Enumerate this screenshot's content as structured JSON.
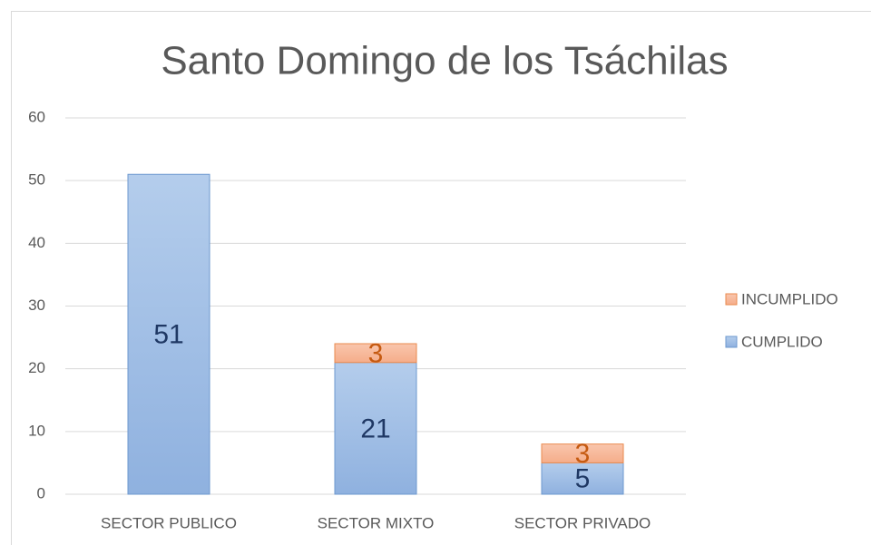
{
  "chart_data": {
    "type": "stacked_bar",
    "title": "Santo Domingo de los Tsáchilas",
    "categories": [
      "SECTOR PUBLICO",
      "SECTOR MIXTO",
      "SECTOR PRIVADO"
    ],
    "series": [
      {
        "name": "CUMPLIDO",
        "color": "#9dbce6",
        "values": [
          51,
          21,
          5
        ]
      },
      {
        "name": "INCUMPLIDO",
        "color": "#f7b99b",
        "values": [
          null,
          3,
          3
        ]
      }
    ],
    "ylim": [
      0,
      60
    ],
    "yticks": [
      0,
      10,
      20,
      30,
      40,
      50,
      60
    ],
    "grid": true,
    "legend": "right"
  }
}
